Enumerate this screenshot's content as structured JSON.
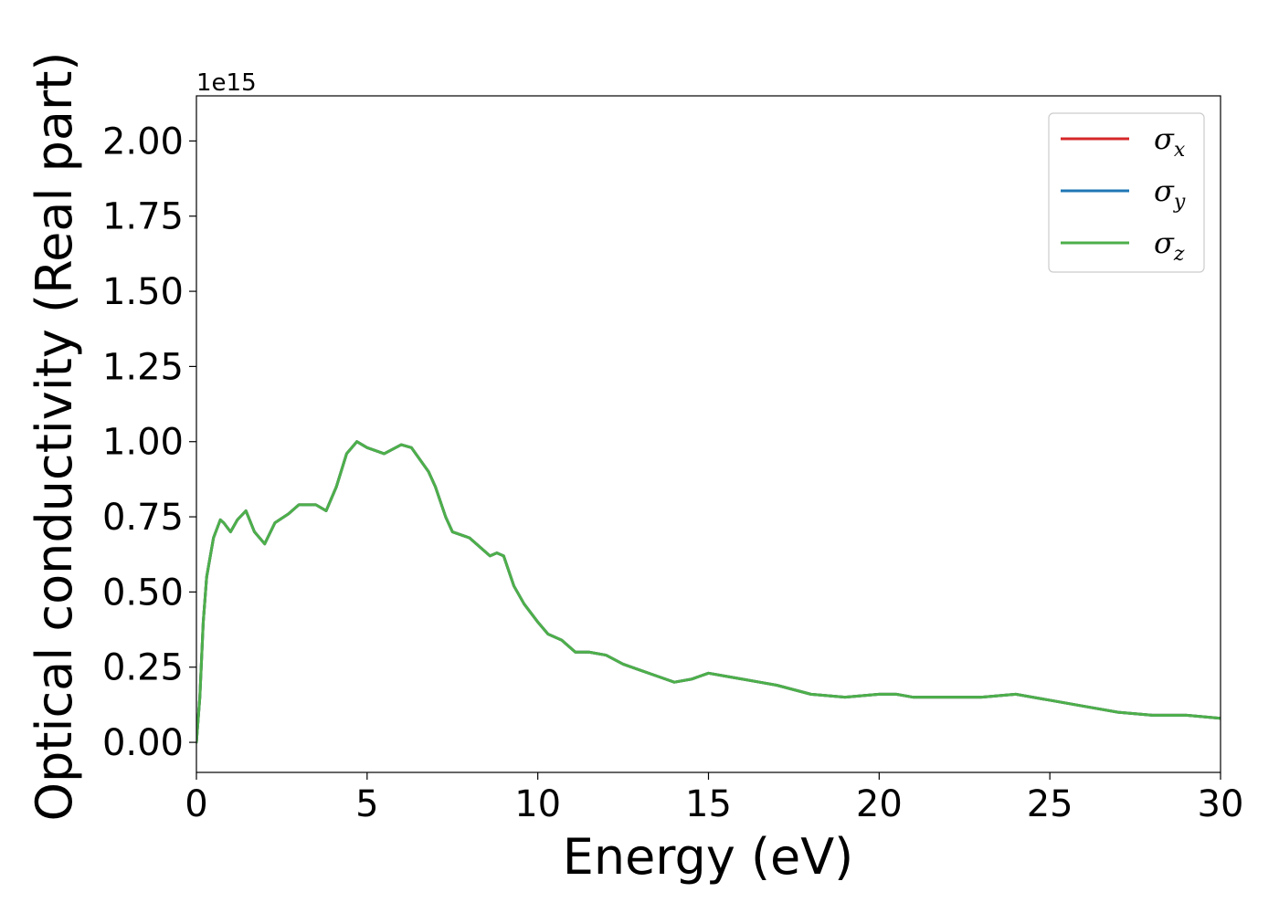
{
  "chart_data": {
    "type": "line",
    "xlabel": "Energy (eV)",
    "ylabel": "Optical conductivity (Real part)",
    "y_offset_label": "1e15",
    "y_scale": 1000000000000000.0,
    "xlim": [
      0,
      30
    ],
    "ylim": [
      -0.1,
      2.15
    ],
    "x_ticks": [
      0,
      5,
      10,
      15,
      20,
      25,
      30
    ],
    "x_tick_labels": [
      "0",
      "5",
      "10",
      "15",
      "20",
      "25",
      "30"
    ],
    "y_ticks": [
      0,
      0.25,
      0.5,
      0.75,
      1.0,
      1.25,
      1.5,
      1.75,
      2.0
    ],
    "y_tick_labels": [
      "0.00",
      "0.25",
      "0.50",
      "0.75",
      "1.00",
      "1.25",
      "1.50",
      "1.75",
      "2.00"
    ],
    "grid": false,
    "legend_position": "top-right",
    "series": [
      {
        "name": "σx",
        "symbol": "σ",
        "subscript": "x",
        "color": "#d62728",
        "x": [
          0,
          0.1,
          0.2,
          0.3,
          0.5,
          0.7,
          0.8,
          1.0,
          1.2,
          1.45,
          1.7,
          2.0,
          2.3,
          2.7,
          3.0,
          3.5,
          3.8,
          4.1,
          4.4,
          4.7,
          5.0,
          5.5,
          6.0,
          6.3,
          6.8,
          7.0,
          7.3,
          7.5,
          8.0,
          8.3,
          8.6,
          8.8,
          9.0,
          9.3,
          9.6,
          10.0,
          10.3,
          10.7,
          11.1,
          11.5,
          12.0,
          12.5,
          13.0,
          13.5,
          14.0,
          14.5,
          15.0,
          15.5,
          16.0,
          16.5,
          17.0,
          18.0,
          19.0,
          20.0,
          20.5,
          21.0,
          22.0,
          23.0,
          24.0,
          25.0,
          26.0,
          27.0,
          28.0,
          29.0,
          30.0
        ],
        "y": [
          0.0,
          0.15,
          0.4,
          0.55,
          0.68,
          0.74,
          0.73,
          0.7,
          0.74,
          0.77,
          0.7,
          0.66,
          0.73,
          0.76,
          0.79,
          0.79,
          0.77,
          0.85,
          0.96,
          1.0,
          0.98,
          0.96,
          0.99,
          0.98,
          0.9,
          0.85,
          0.75,
          0.7,
          0.68,
          0.65,
          0.62,
          0.63,
          0.62,
          0.52,
          0.46,
          0.4,
          0.36,
          0.34,
          0.3,
          0.3,
          0.29,
          0.26,
          0.24,
          0.22,
          0.2,
          0.21,
          0.23,
          0.22,
          0.21,
          0.2,
          0.19,
          0.16,
          0.15,
          0.16,
          0.16,
          0.15,
          0.15,
          0.15,
          0.16,
          0.14,
          0.12,
          0.1,
          0.09,
          0.09,
          0.08
        ]
      },
      {
        "name": "σy",
        "symbol": "σ",
        "subscript": "y",
        "color": "#1f77b4",
        "x": [
          0,
          0.1,
          0.2,
          0.3,
          0.5,
          0.7,
          0.8,
          1.0,
          1.2,
          1.45,
          1.7,
          2.0,
          2.3,
          2.7,
          3.0,
          3.5,
          3.8,
          4.1,
          4.4,
          4.7,
          5.0,
          5.5,
          6.0,
          6.3,
          6.8,
          7.0,
          7.3,
          7.5,
          8.0,
          8.3,
          8.6,
          8.8,
          9.0,
          9.3,
          9.6,
          10.0,
          10.3,
          10.7,
          11.1,
          11.5,
          12.0,
          12.5,
          13.0,
          13.5,
          14.0,
          14.5,
          15.0,
          15.5,
          16.0,
          16.5,
          17.0,
          18.0,
          19.0,
          20.0,
          20.5,
          21.0,
          22.0,
          23.0,
          24.0,
          25.0,
          26.0,
          27.0,
          28.0,
          29.0,
          30.0
        ],
        "y": [
          0.0,
          0.15,
          0.4,
          0.55,
          0.68,
          0.74,
          0.73,
          0.7,
          0.74,
          0.77,
          0.7,
          0.66,
          0.73,
          0.76,
          0.79,
          0.79,
          0.77,
          0.85,
          0.96,
          1.0,
          0.98,
          0.96,
          0.99,
          0.98,
          0.9,
          0.85,
          0.75,
          0.7,
          0.68,
          0.65,
          0.62,
          0.63,
          0.62,
          0.52,
          0.46,
          0.4,
          0.36,
          0.34,
          0.3,
          0.3,
          0.29,
          0.26,
          0.24,
          0.22,
          0.2,
          0.21,
          0.23,
          0.22,
          0.21,
          0.2,
          0.19,
          0.16,
          0.15,
          0.16,
          0.16,
          0.15,
          0.15,
          0.15,
          0.16,
          0.14,
          0.12,
          0.1,
          0.09,
          0.09,
          0.08
        ]
      },
      {
        "name": "σz",
        "symbol": "σ",
        "subscript": "z",
        "color": "#4daf4a",
        "x": [
          0,
          0.1,
          0.2,
          0.3,
          0.5,
          0.7,
          0.8,
          1.0,
          1.2,
          1.45,
          1.7,
          2.0,
          2.3,
          2.7,
          3.0,
          3.5,
          3.8,
          4.1,
          4.4,
          4.7,
          5.0,
          5.5,
          6.0,
          6.3,
          6.8,
          7.0,
          7.3,
          7.5,
          8.0,
          8.3,
          8.6,
          8.8,
          9.0,
          9.3,
          9.6,
          10.0,
          10.3,
          10.7,
          11.1,
          11.5,
          12.0,
          12.5,
          13.0,
          13.5,
          14.0,
          14.5,
          15.0,
          15.5,
          16.0,
          16.5,
          17.0,
          18.0,
          19.0,
          20.0,
          20.5,
          21.0,
          22.0,
          23.0,
          24.0,
          25.0,
          26.0,
          27.0,
          28.0,
          29.0,
          30.0
        ],
        "y": [
          0.0,
          0.15,
          0.4,
          0.55,
          0.68,
          0.74,
          0.73,
          0.7,
          0.74,
          0.77,
          0.7,
          0.66,
          0.73,
          0.76,
          0.79,
          0.79,
          0.77,
          0.85,
          0.96,
          1.0,
          0.98,
          0.96,
          0.99,
          0.98,
          0.9,
          0.85,
          0.75,
          0.7,
          0.68,
          0.65,
          0.62,
          0.63,
          0.62,
          0.52,
          0.46,
          0.4,
          0.36,
          0.34,
          0.3,
          0.3,
          0.29,
          0.26,
          0.24,
          0.22,
          0.2,
          0.21,
          0.23,
          0.22,
          0.21,
          0.2,
          0.19,
          0.16,
          0.15,
          0.16,
          0.16,
          0.15,
          0.15,
          0.15,
          0.16,
          0.14,
          0.12,
          0.1,
          0.09,
          0.09,
          0.08
        ]
      }
    ]
  }
}
